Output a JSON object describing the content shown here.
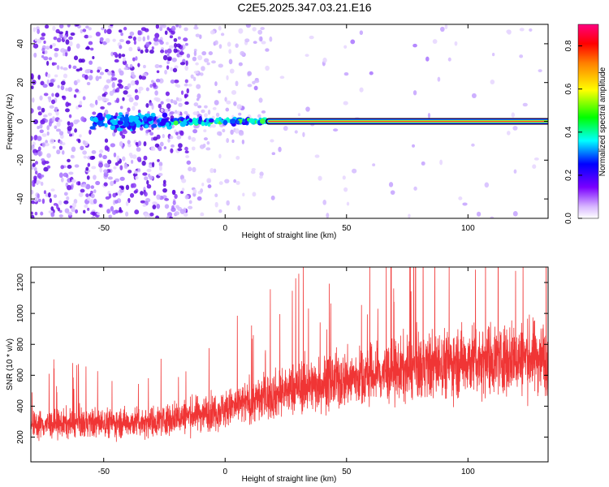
{
  "title": "C2E5.2025.347.03.21.E16",
  "colors": {
    "snr_line": "#f03535",
    "spectrogram_points": "#6a1ee0",
    "ridge": "#ff3030"
  },
  "chart_data": [
    {
      "type": "heatmap",
      "xlabel": "Height of straight line (km)",
      "ylabel": "Frequency (Hz)",
      "xlim": [
        -80,
        133
      ],
      "ylim": [
        -50,
        50
      ],
      "x_ticks": [
        -50,
        0,
        50,
        100
      ],
      "y_ticks": [
        -40,
        -20,
        0,
        20,
        40
      ],
      "ridge": {
        "frequency": 0,
        "x_start": 18,
        "x_end": 133
      },
      "colorbar": {
        "label": "Normalized spectral amplitude",
        "range": [
          0.0,
          0.9
        ],
        "ticks": [
          0.0,
          0.2,
          0.4,
          0.6,
          0.8
        ],
        "colormap": "rainbow"
      },
      "grid": false
    },
    {
      "type": "line",
      "xlabel": "Height of straight line (km)",
      "ylabel": "SNR (10 * v/v)",
      "xlim": [
        -80,
        133
      ],
      "ylim": [
        40,
        1300
      ],
      "x_ticks": [
        -50,
        0,
        50,
        100
      ],
      "y_ticks": [
        200,
        400,
        600,
        800,
        1000,
        1200
      ],
      "trend": {
        "x": [
          -80,
          -30,
          0,
          30,
          60,
          100,
          133
        ],
        "y": [
          280,
          300,
          380,
          520,
          600,
          700,
          720
        ]
      },
      "grid": false
    }
  ]
}
